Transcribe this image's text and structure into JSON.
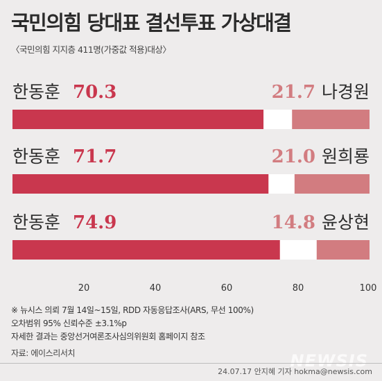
{
  "header": {
    "title": "국민의힘 당대표 결선투표 가상대결",
    "subtitle": "〈국민의힘 지지층 411명(가중값 적용)대상〉"
  },
  "colors": {
    "left_bar": "#c9374e",
    "right_bar": "#d27c80",
    "gap": "#ffffff",
    "left_value_text": "#c9374e",
    "right_value_text": "#d27c80",
    "background": "#eeecec"
  },
  "chart_data": {
    "type": "bar",
    "orientation": "horizontal-stacked",
    "categories": [
      "한동훈 vs 나경원",
      "한동훈 vs 원희룡",
      "한동훈 vs 윤상현"
    ],
    "rows": [
      {
        "left_name": "한동훈",
        "left_value": 70.3,
        "right_name": "나경원",
        "right_value": 21.7
      },
      {
        "left_name": "한동훈",
        "left_value": 71.7,
        "right_name": "원희룡",
        "right_value": 21.0
      },
      {
        "left_name": "한동훈",
        "left_value": 74.9,
        "right_name": "윤상현",
        "right_value": 14.8
      }
    ],
    "xlim": [
      0,
      100
    ],
    "xticks": [
      20,
      40,
      60,
      80,
      100
    ],
    "grid": false
  },
  "notes": [
    "※ 뉴시스 의뢰 7월 14일~15일,  RDD 자동응답조사(ARS, 무선 100%)",
    "오차범위 95% 신뢰수준   ±3.1%p",
    "자세한 결과는 중앙선거여론조사심의위원회 홈페이지 참조"
  ],
  "source": "자료: 에이스리서치",
  "credit": "24.07.17  안지혜 기자  hokma@newsis.com",
  "watermark": "NEWSIS"
}
